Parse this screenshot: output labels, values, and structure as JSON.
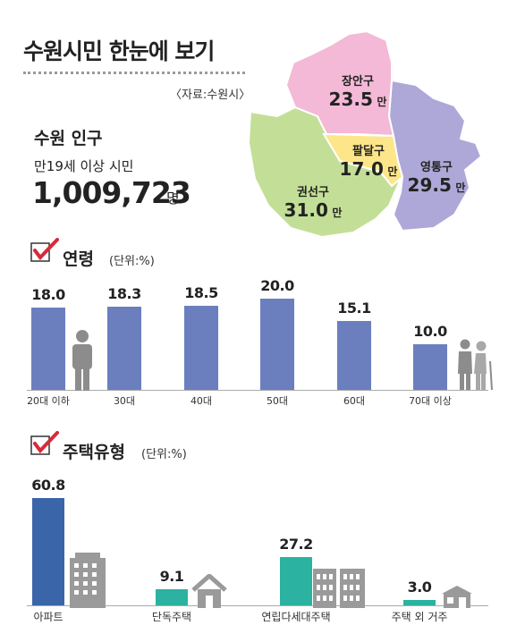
{
  "header": {
    "title": "수원시민 한눈에 보기",
    "source": "〈자료:수원시〉"
  },
  "population": {
    "label": "수원 인구",
    "sublabel": "만19세 이상 시민",
    "value": "1,009,723",
    "unit": "명"
  },
  "map": {
    "unit": "만",
    "districts": [
      {
        "name": "장안구",
        "value": "23.5",
        "color": "#f3b9d6"
      },
      {
        "name": "팔달구",
        "value": "17.0",
        "color": "#fde68a"
      },
      {
        "name": "영통구",
        "value": "29.5",
        "color": "#aea8d8"
      },
      {
        "name": "권선구",
        "value": "31.0",
        "color": "#c3df97"
      }
    ]
  },
  "age": {
    "heading": "연령",
    "unit_note": "(단위:%)",
    "icons": [
      "person-icon",
      "elderly-couple-icon"
    ]
  },
  "housing": {
    "heading": "주택유형",
    "unit_note": "(단위:%)",
    "icons": [
      "apartment-building-icon",
      "house-icon",
      "multiplex-building-icon",
      "shop-house-icon"
    ]
  },
  "chart_data": [
    {
      "type": "bar",
      "title": "연령",
      "unit": "(단위:%)",
      "categories": [
        "20대 이하",
        "30대",
        "40대",
        "50대",
        "60대",
        "70대 이상"
      ],
      "values": [
        18.0,
        18.3,
        18.5,
        20.0,
        15.1,
        10.0
      ],
      "labels": [
        "18.0",
        "18.3",
        "18.5",
        "20.0",
        "15.1",
        "10.0"
      ],
      "colors": [
        "#6b7fbf"
      ],
      "ylim": [
        0,
        20
      ]
    },
    {
      "type": "bar",
      "title": "주택유형",
      "unit": "(단위:%)",
      "categories": [
        "아파트",
        "단독주택",
        "연립다세대주택",
        "주택 외 거주"
      ],
      "values": [
        60.8,
        9.1,
        27.2,
        3.0
      ],
      "labels": [
        "60.8",
        "9.1",
        "27.2",
        "3.0"
      ],
      "colors": [
        "#3a65a8",
        "#2bb2a0",
        "#2bb2a0",
        "#2bb2a0"
      ],
      "ylim": [
        0,
        60.8
      ]
    }
  ]
}
